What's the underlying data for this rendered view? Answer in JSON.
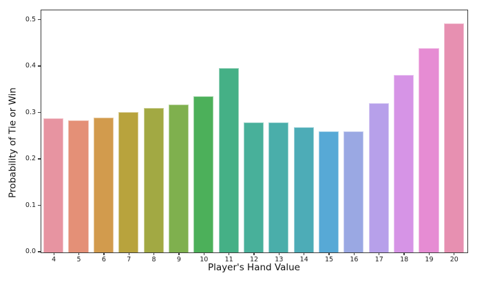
{
  "chart_data": {
    "type": "bar",
    "title": "",
    "xlabel": "Player's Hand Value",
    "ylabel": "Probability of Tie or Win",
    "categories": [
      "4",
      "5",
      "6",
      "7",
      "8",
      "9",
      "10",
      "11",
      "12",
      "13",
      "14",
      "15",
      "16",
      "17",
      "18",
      "19",
      "20"
    ],
    "values": [
      0.288,
      0.284,
      0.289,
      0.301,
      0.31,
      0.318,
      0.335,
      0.397,
      0.28,
      0.28,
      0.269,
      0.26,
      0.26,
      0.321,
      0.381,
      0.44,
      0.493
    ],
    "bar_colors": [
      "#e794a1",
      "#e49077",
      "#d29b4d",
      "#b8a33d",
      "#a2a943",
      "#7fb04e",
      "#4cb05a",
      "#45b086",
      "#48b09a",
      "#4aaeaa",
      "#4dacb7",
      "#57a9d6",
      "#9aa8e3",
      "#b7a0ea",
      "#d694e6",
      "#e68cd3",
      "#e790b1"
    ],
    "ytick_labels": [
      "0.0",
      "0.1",
      "0.2",
      "0.3",
      "0.4",
      "0.5"
    ],
    "ylim": [
      0,
      0.52
    ],
    "grid": false,
    "legend": null,
    "axis_color": "#3a3a3a",
    "text_color": "#1a1a1a"
  }
}
